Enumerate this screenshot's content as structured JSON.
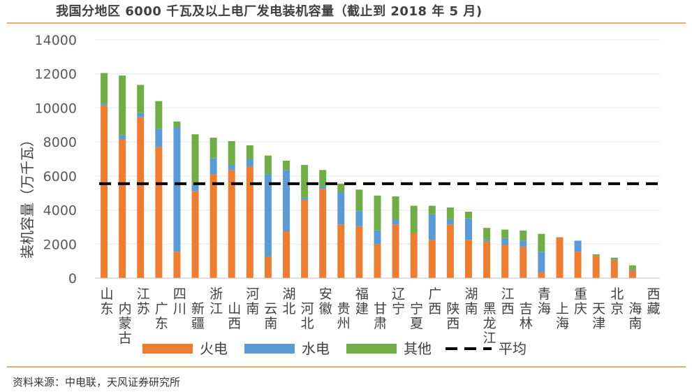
{
  "header": {
    "title": "我国分地区 6000 千瓦及以上电厂发电装机容量（截止到 2018 年 5 月)"
  },
  "footer": {
    "source": "资料来源：中电联，天风证券研究所"
  },
  "chart_data": {
    "type": "bar",
    "stacked": true,
    "title": "我国分地区 6000 千瓦及以上电厂发电装机容量（截止到 2018 年 5 月)",
    "ylabel": "装机容量（万千瓦）",
    "ylim": [
      0,
      14000
    ],
    "yticks": [
      0,
      2000,
      4000,
      6000,
      8000,
      10000,
      12000,
      14000
    ],
    "categories": [
      "山东",
      "内蒙古",
      "江苏",
      "广东",
      "四川",
      "新疆",
      "浙江",
      "山西",
      "河南",
      "云南",
      "湖北",
      "河北",
      "安徽",
      "贵州",
      "福建",
      "甘肃",
      "辽宁",
      "宁夏",
      "广西",
      "陕西",
      "湖南",
      "黑龙江",
      "江西",
      "吉林",
      "青海",
      "上海",
      "重庆",
      "天津",
      "北京",
      "海南",
      "西藏"
    ],
    "series": [
      {
        "name": "火电",
        "color": "#ed7d31",
        "values": [
          10150,
          8150,
          9450,
          7700,
          1550,
          5100,
          6100,
          6350,
          6550,
          1250,
          2750,
          4600,
          5250,
          3150,
          3050,
          2000,
          3150,
          2650,
          2250,
          3150,
          2250,
          2150,
          1950,
          1850,
          350,
          2400,
          1550,
          1300,
          1050,
          450,
          0
        ]
      },
      {
        "name": "水电",
        "color": "#5b9bd5",
        "values": [
          100,
          250,
          250,
          1050,
          7300,
          400,
          950,
          300,
          450,
          4850,
          3600,
          150,
          150,
          1900,
          900,
          800,
          300,
          0,
          1500,
          300,
          1250,
          100,
          400,
          350,
          1200,
          0,
          650,
          0,
          50,
          50,
          0
        ]
      },
      {
        "name": "其他",
        "color": "#70ad47",
        "values": [
          1800,
          3500,
          1650,
          1650,
          350,
          2950,
          1200,
          1400,
          800,
          1100,
          550,
          1900,
          950,
          500,
          1250,
          2050,
          1350,
          1600,
          500,
          700,
          400,
          700,
          500,
          600,
          1050,
          0,
          0,
          100,
          100,
          250,
          0
        ]
      }
    ],
    "reference_lines": [
      {
        "name": "平均",
        "value": 5550,
        "style": "dashed",
        "color": "#000000"
      }
    ],
    "legend": {
      "position": "bottom",
      "entries": [
        "火电",
        "水电",
        "其他",
        "平均"
      ]
    }
  }
}
